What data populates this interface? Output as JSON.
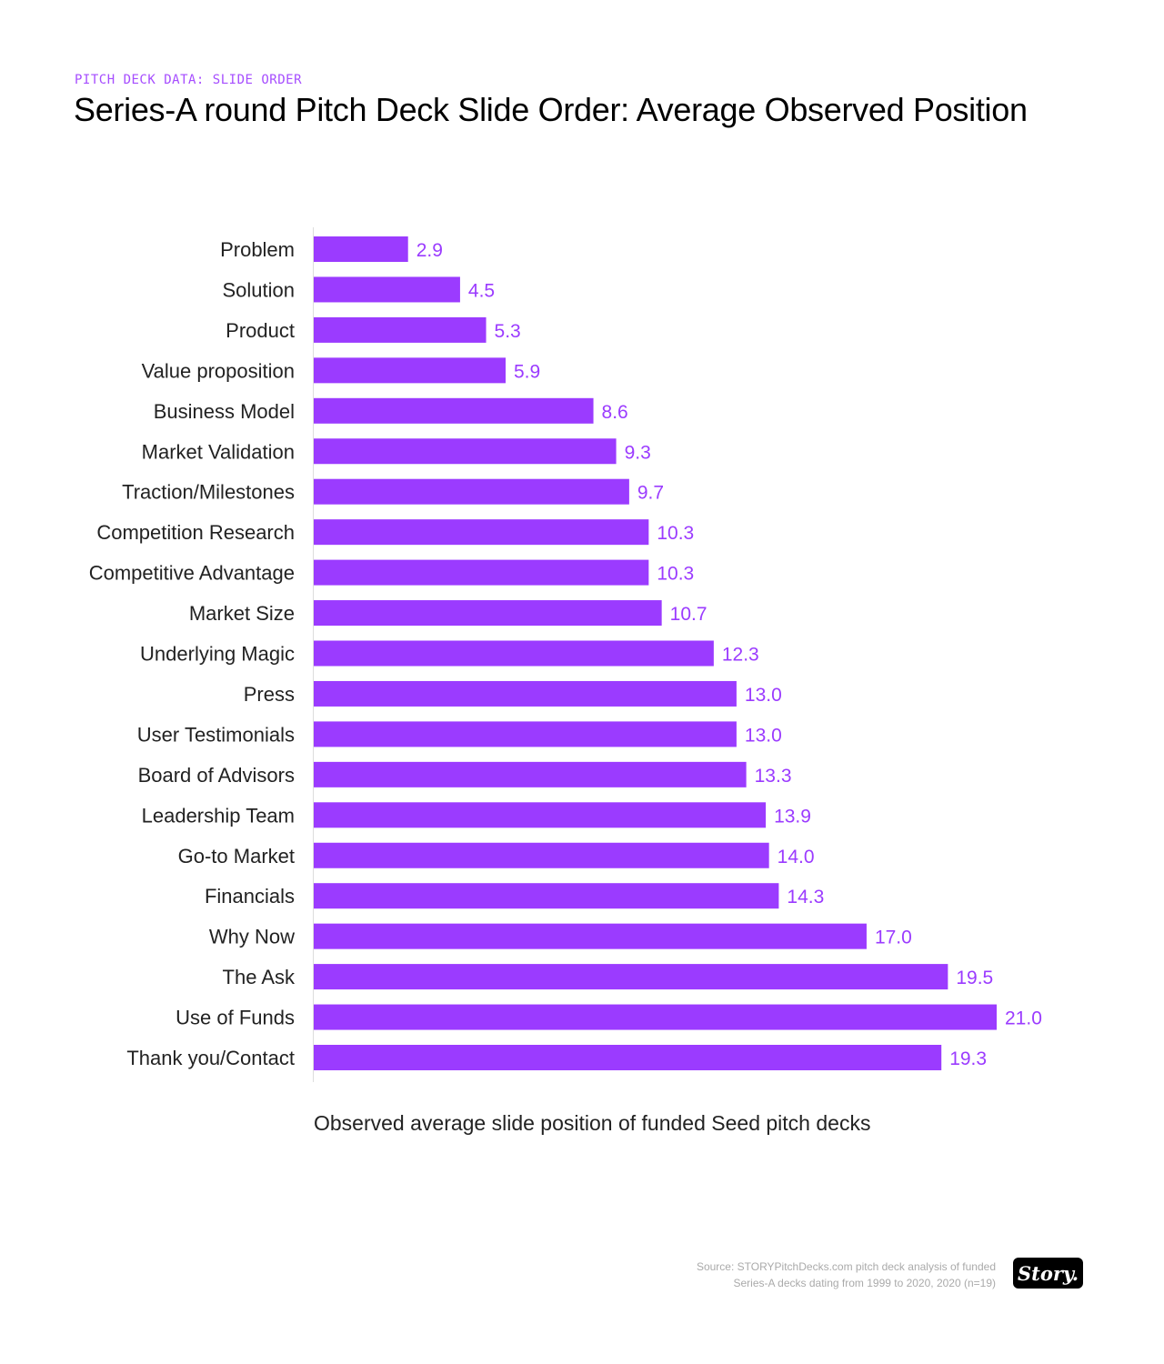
{
  "header": {
    "kicker": "PITCH DECK DATA: SLIDE ORDER",
    "title": "Series-A round Pitch Deck Slide Order: Average Observed Position"
  },
  "footer": {
    "source_line1": "Source: STORYPitchDecks.com pitch deck analysis of funded",
    "source_line2": "Series-A decks dating from 1999 to 2020, 2020 (n=19)",
    "logo_text": "Story."
  },
  "colors": {
    "bar": "#9b3bff",
    "label": "#9b3bff",
    "axis": "#dddddd"
  },
  "chart_data": {
    "type": "bar",
    "orientation": "horizontal",
    "title": "Series-A round Pitch Deck Slide Order: Average Observed Position",
    "xlabel": "Observed average slide position of funded Seed pitch decks",
    "ylabel": "",
    "xlim": [
      0,
      21
    ],
    "grid": false,
    "categories": [
      "Problem",
      "Solution",
      "Product",
      "Value proposition",
      "Business Model",
      "Market Validation",
      "Traction/Milestones",
      "Competition Research",
      "Competitive Advantage",
      "Market Size",
      "Underlying Magic",
      "Press",
      "User Testimonials",
      "Board of Advisors",
      "Leadership Team",
      "Go-to Market",
      "Financials",
      "Why Now",
      "The Ask",
      "Use of Funds",
      "Thank you/Contact"
    ],
    "values": [
      2.9,
      4.5,
      5.3,
      5.9,
      8.6,
      9.3,
      9.7,
      10.3,
      10.3,
      10.7,
      12.3,
      13.0,
      13.0,
      13.3,
      13.9,
      14.0,
      14.3,
      17.0,
      19.5,
      21.0,
      19.3
    ]
  }
}
